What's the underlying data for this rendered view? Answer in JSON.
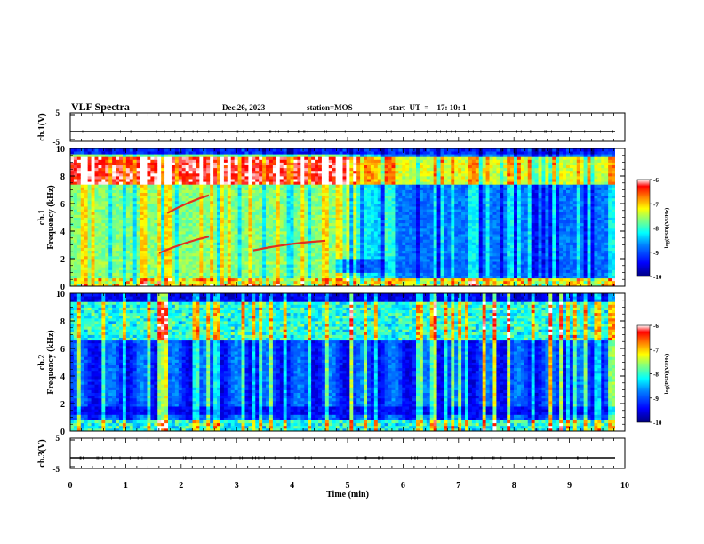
{
  "header": {
    "title": "VLF Spectra",
    "date": "Dec.26, 2023",
    "station": "station=MOS",
    "start_ut": "start  UT  =    17: 10: 1"
  },
  "chart_data": [
    {
      "type": "line",
      "name": "ch1-waveform",
      "ylabel": "ch.1(V)",
      "ylim": [
        -5,
        5
      ],
      "yticks": [
        "5",
        "-5"
      ],
      "baseline": 0,
      "x": [
        0,
        10
      ],
      "xlim": [
        0,
        10
      ]
    },
    {
      "type": "heatmap",
      "name": "ch1-spectrogram",
      "ylabel_line1": "ch.1",
      "ylabel_line2": "Frequency (kHz)",
      "ylim": [
        0,
        10
      ],
      "yticks": [
        "0",
        "2",
        "4",
        "6",
        "8",
        "10"
      ],
      "xlim": [
        0,
        10
      ],
      "colorbar": {
        "label": "log(PSD)(V²/Hz)",
        "range": [
          -10,
          -6
        ],
        "ticks": [
          "-6",
          "-7",
          "-8",
          "-9",
          "-10"
        ]
      },
      "features": [
        {
          "description": "strong band",
          "freq_khz": [
            7.5,
            9.5
          ],
          "time_min": [
            0,
            4.7
          ]
        },
        {
          "description": "rising tone",
          "freq_khz": [
            5.3,
            6.6
          ],
          "time_min": [
            1.75,
            2.5
          ]
        },
        {
          "description": "rising tone",
          "freq_khz": [
            2.4,
            3.6
          ],
          "time_min": [
            1.6,
            2.5
          ]
        },
        {
          "description": "rising tone",
          "freq_khz": [
            2.6,
            3.3
          ],
          "time_min": [
            3.3,
            4.6
          ]
        },
        {
          "description": "broadband hiss",
          "freq_khz": [
            0.5,
            6.5
          ],
          "time_min": [
            0,
            4.8
          ]
        }
      ]
    },
    {
      "type": "heatmap",
      "name": "ch2-spectrogram",
      "ylabel_line1": "ch.2",
      "ylabel_line2": "Frequency (kHz)",
      "ylim": [
        0,
        10
      ],
      "yticks": [
        "0",
        "2",
        "4",
        "6",
        "8",
        "10"
      ],
      "xlim": [
        0,
        10
      ],
      "colorbar": {
        "label": "log(PSD)(V²/Hz)",
        "range": [
          -10,
          -6
        ],
        "ticks": [
          "-6",
          "-7",
          "-8",
          "-9",
          "-10"
        ]
      }
    },
    {
      "type": "line",
      "name": "ch3-waveform",
      "ylabel": "ch.3(V)",
      "ylim": [
        -5,
        5
      ],
      "yticks": [
        "5",
        "-5"
      ],
      "baseline": 0,
      "x": [
        0,
        10
      ],
      "xlim": [
        0,
        10
      ]
    }
  ],
  "xaxis": {
    "label": "Time  (min)",
    "ticks": [
      "0",
      "1",
      "2",
      "3",
      "4",
      "5",
      "6",
      "7",
      "8",
      "9",
      "10"
    ]
  },
  "colors": {
    "jet": [
      "#00007f",
      "#0000ff",
      "#0080ff",
      "#00ffff",
      "#80ff80",
      "#ffff00",
      "#ff8000",
      "#ff0000",
      "#ffffff"
    ]
  }
}
